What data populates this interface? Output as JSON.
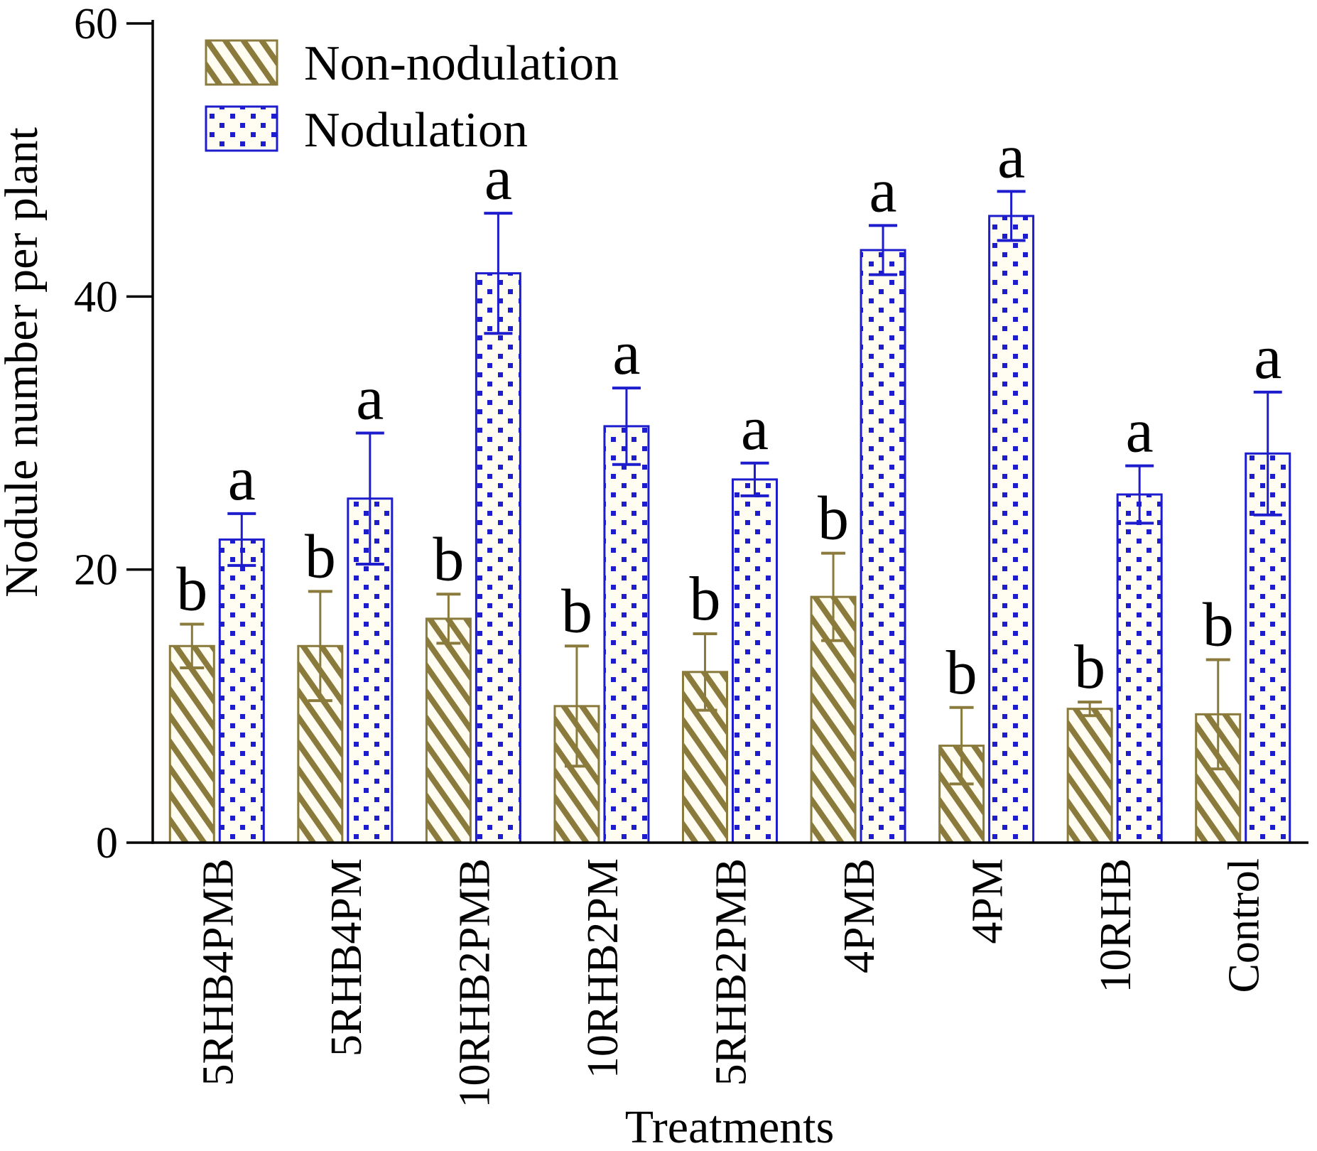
{
  "chart_data": {
    "type": "bar",
    "title": "",
    "xlabel": "Treatments",
    "ylabel": "Nodule number per plant",
    "ylim": [
      0,
      60
    ],
    "yticks": [
      0,
      20,
      40,
      60
    ],
    "grid": false,
    "legend_position": "top-left-inside",
    "background_color": "#ffffff",
    "bar_interior_color": "#fffdf2",
    "categories": [
      "5RHB4PMB",
      "5RHB4PM",
      "10RHB2PMB",
      "10RHB2PM",
      "5RHB2PMB",
      "4PMB",
      "4PM",
      "10RHB",
      "Control"
    ],
    "series": [
      {
        "name": "Non-nodulation",
        "color": "#8a7a3c",
        "pattern": "diagonal-hatch",
        "letter": "b",
        "values": [
          14.4,
          14.4,
          16.4,
          10.0,
          12.5,
          18.0,
          7.1,
          9.8,
          9.4
        ],
        "errors": [
          1.6,
          4.0,
          1.8,
          4.4,
          2.8,
          3.2,
          2.8,
          0.5,
          4.0
        ]
      },
      {
        "name": "Nodulation",
        "color": "#1d1dce",
        "pattern": "square-dots",
        "letter": "a",
        "values": [
          22.2,
          25.2,
          41.7,
          30.5,
          26.6,
          43.4,
          45.9,
          25.5,
          28.5
        ],
        "errors": [
          1.9,
          4.8,
          4.4,
          2.8,
          1.2,
          1.8,
          1.8,
          2.1,
          4.5
        ]
      }
    ],
    "significance_letter_color": "#000000"
  }
}
